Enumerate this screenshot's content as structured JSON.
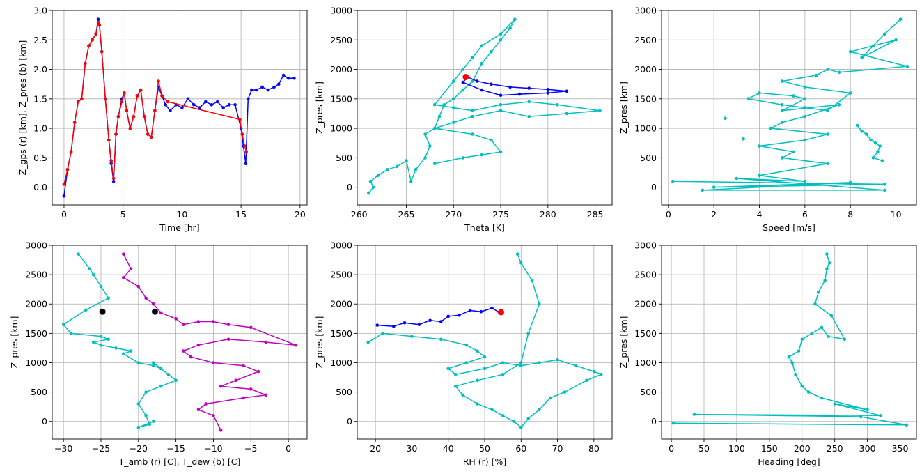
{
  "chart_data": [
    {
      "type": "line",
      "xlabel": "Time [hr]",
      "ylabel": "Z_gps (r) [km], Z_pres (b) [km]",
      "xlim": [
        -1,
        20.6
      ],
      "ylim": [
        -0.3,
        3.0
      ],
      "xticks": [
        0,
        5,
        10,
        15,
        20
      ],
      "xticklabels": [
        "0",
        "5",
        "10",
        "15",
        "20"
      ],
      "yticks": [
        0.0,
        0.5,
        1.0,
        1.5,
        2.0,
        2.5,
        3.0
      ],
      "yticklabels": [
        "0.0",
        "0.5",
        "1.0",
        "1.5",
        "2.0",
        "2.5",
        "3.0"
      ],
      "grid": true,
      "series": [
        {
          "color": "#0000ff",
          "x": [
            0,
            0.3,
            0.6,
            0.9,
            1.2,
            1.5,
            1.8,
            2.1,
            2.4,
            2.7,
            2.9,
            3.0,
            3.2,
            3.5,
            3.8,
            4.0,
            4.2,
            4.4,
            4.6,
            4.9,
            5.1,
            5.3,
            5.6,
            5.9,
            6.2,
            6.5,
            6.8,
            7.1,
            7.4,
            7.7,
            8.0,
            8.3,
            8.6,
            9.0,
            9.5,
            10.0,
            10.5,
            11.0,
            11.5,
            12.0,
            12.5,
            13.0,
            13.5,
            14.0,
            14.5,
            15.0,
            15.2,
            15.4,
            15.6,
            15.9,
            16.3,
            16.8,
            17.3,
            17.8,
            18.2,
            18.6,
            19.0,
            19.5
          ],
          "y": [
            -0.15,
            0.3,
            0.6,
            1.1,
            1.45,
            1.5,
            2.1,
            2.4,
            2.5,
            2.6,
            2.85,
            2.75,
            2.3,
            1.5,
            0.8,
            0.4,
            0.1,
            0.9,
            1.2,
            1.5,
            1.6,
            1.3,
            1.0,
            1.2,
            1.55,
            1.65,
            1.2,
            0.9,
            0.85,
            1.3,
            1.7,
            1.55,
            1.4,
            1.3,
            1.4,
            1.35,
            1.5,
            1.4,
            1.35,
            1.45,
            1.4,
            1.45,
            1.35,
            1.4,
            1.4,
            1.0,
            0.7,
            0.4,
            1.5,
            1.65,
            1.65,
            1.7,
            1.65,
            1.7,
            1.75,
            1.9,
            1.85,
            1.85
          ]
        },
        {
          "color": "#ff0000",
          "x": [
            0,
            0.3,
            0.6,
            0.9,
            1.2,
            1.5,
            1.8,
            2.1,
            2.4,
            2.7,
            2.9,
            3.0,
            3.2,
            3.5,
            3.8,
            4.0,
            4.2,
            4.4,
            4.6,
            4.9,
            5.1,
            5.3,
            5.6,
            5.9,
            6.2,
            6.5,
            6.8,
            7.1,
            7.4,
            7.7,
            8.0,
            8.3,
            8.8,
            14.9,
            15.1,
            15.3,
            15.45
          ],
          "y": [
            0.05,
            0.3,
            0.6,
            1.1,
            1.45,
            1.5,
            2.1,
            2.4,
            2.5,
            2.6,
            2.8,
            2.75,
            2.3,
            1.5,
            0.8,
            0.45,
            0.15,
            0.9,
            1.2,
            1.45,
            1.6,
            1.3,
            1.0,
            1.2,
            1.55,
            1.65,
            1.2,
            0.9,
            0.85,
            1.3,
            1.8,
            1.55,
            1.45,
            1.15,
            0.9,
            0.7,
            0.6
          ]
        }
      ]
    },
    {
      "type": "line",
      "xlabel": "Theta [K]",
      "ylabel": "Z_pres [km]",
      "xlim": [
        259.8,
        286.8
      ],
      "ylim": [
        -300,
        3000
      ],
      "xticks": [
        260,
        265,
        270,
        275,
        280,
        285
      ],
      "xticklabels": [
        "260",
        "265",
        "270",
        "275",
        "280",
        "285"
      ],
      "yticks": [
        0,
        500,
        1000,
        1500,
        2000,
        2500,
        3000
      ],
      "yticklabels": [
        "0",
        "500",
        "1000",
        "1500",
        "2000",
        "2500",
        "3000"
      ],
      "grid": true,
      "series": [
        {
          "color": "#00bfbf",
          "x": [
            261,
            261.5,
            261.2,
            262,
            263,
            264,
            265,
            265.5,
            266,
            267,
            267.5,
            267,
            268,
            268.5,
            269,
            270,
            271,
            272,
            273,
            274,
            275,
            276,
            276.5,
            275,
            273,
            272,
            271,
            270,
            268,
            270,
            272,
            275,
            278,
            281,
            285.5,
            282,
            278,
            275,
            272,
            270,
            268,
            272,
            274,
            275,
            273,
            271,
            268
          ],
          "y": [
            -100,
            0,
            100,
            200,
            300,
            350,
            450,
            100,
            300,
            500,
            700,
            900,
            1000,
            1200,
            1400,
            1500,
            1650,
            1800,
            2100,
            2300,
            2500,
            2700,
            2850,
            2600,
            2400,
            2200,
            2000,
            1800,
            1400,
            1350,
            1300,
            1400,
            1450,
            1400,
            1300,
            1250,
            1200,
            1300,
            1200,
            1100,
            1000,
            900,
            800,
            600,
            550,
            500,
            400
          ]
        },
        {
          "color": "#0000ff",
          "x": [
            271.5,
            272.5,
            274,
            276,
            278,
            280,
            282,
            280,
            277,
            275,
            273,
            271,
            271.5
          ],
          "y": [
            1870,
            1800,
            1750,
            1700,
            1680,
            1660,
            1630,
            1600,
            1580,
            1560,
            1650,
            1780,
            1870
          ]
        },
        {
          "color": "#ff0000",
          "marker": "big",
          "x": [
            271.3
          ],
          "y": [
            1870
          ]
        }
      ]
    },
    {
      "type": "line",
      "xlabel": "Speed [m/s]",
      "ylabel": "Z_pres [km]",
      "xlim": [
        -0.3,
        10.9
      ],
      "ylim": [
        -300,
        3000
      ],
      "xticks": [
        0,
        2,
        4,
        6,
        8,
        10
      ],
      "xticklabels": [
        "0",
        "2",
        "4",
        "6",
        "8",
        "10"
      ],
      "yticks": [
        0,
        500,
        1000,
        1500,
        2000,
        2500,
        3000
      ],
      "yticklabels": [
        "0",
        "500",
        "1000",
        "1500",
        "2000",
        "2500",
        "3000"
      ],
      "grid": true,
      "series": [
        {
          "color": "#00bfbf",
          "x": [
            0.2,
            9.5,
            2,
            8,
            1.5,
            9.5,
            3,
            6,
            4,
            7,
            5,
            5.5,
            4,
            6,
            7,
            4.5,
            5,
            6,
            7.5,
            5,
            6,
            5.5,
            4,
            3.5,
            5,
            6,
            7,
            8,
            6,
            5,
            6.5,
            7,
            7.5,
            10.5,
            8,
            9,
            10,
            8.5,
            9.5,
            10.2
          ],
          "y": [
            100,
            50,
            0,
            80,
            -50,
            -50,
            150,
            100,
            200,
            400,
            500,
            600,
            700,
            800,
            900,
            1000,
            1100,
            1200,
            1400,
            1300,
            1500,
            1550,
            1600,
            1500,
            1400,
            1350,
            1300,
            1600,
            1700,
            1800,
            1900,
            2000,
            1950,
            2050,
            2300,
            2400,
            2500,
            2200,
            2600,
            2850
          ]
        },
        {
          "color": "#00bfbf",
          "x": [
            8.3,
            8.5,
            8.7,
            8.9,
            9.1,
            9.3,
            9.2,
            9.0,
            9.4
          ],
          "y": [
            1050,
            950,
            900,
            800,
            750,
            700,
            600,
            500,
            450
          ]
        },
        {
          "color": "#00bfbf",
          "marker": "dot",
          "x": [
            2.5,
            3.3
          ],
          "y": [
            1170,
            820
          ]
        }
      ]
    },
    {
      "type": "line",
      "xlabel": "T_amb (r) [C], T_dew (b) [C]",
      "ylabel": "Z_pres [km]",
      "xlim": [
        -31.5,
        2.5
      ],
      "ylim": [
        -300,
        3000
      ],
      "xticks": [
        -30,
        -25,
        -20,
        -15,
        -10,
        -5,
        0
      ],
      "xticklabels": [
        "−30",
        "−25",
        "−20",
        "−15",
        "−10",
        "−5",
        "0"
      ],
      "yticks": [
        0,
        500,
        1000,
        1500,
        2000,
        2500,
        3000
      ],
      "yticklabels": [
        "0",
        "500",
        "1000",
        "1500",
        "2000",
        "2500",
        "3000"
      ],
      "grid": true,
      "series": [
        {
          "color": "#00bfbf",
          "x": [
            -28,
            -26.5,
            -26,
            -25,
            -24,
            -27,
            -30,
            -29,
            -25,
            -24,
            -26,
            -25,
            -23,
            -21,
            -22,
            -20,
            -18,
            -17,
            -18,
            -16,
            -15,
            -17,
            -19,
            -20,
            -19,
            -18.5,
            -20,
            -18
          ],
          "y": [
            2850,
            2600,
            2500,
            2300,
            2100,
            1900,
            1650,
            1500,
            1450,
            1400,
            1350,
            1300,
            1250,
            1200,
            1150,
            1000,
            950,
            900,
            1000,
            800,
            700,
            600,
            500,
            300,
            100,
            -50,
            -100,
            0
          ]
        },
        {
          "color": "#bf00bf",
          "x": [
            -22,
            -21,
            -22,
            -20,
            -19,
            -18,
            -17,
            -15,
            -14,
            -12,
            -10,
            -8,
            -5,
            1,
            -3,
            -8,
            -12,
            -14,
            -13,
            -10,
            -6,
            -4,
            -7,
            -9,
            -5,
            -3,
            -6,
            -11,
            -12,
            -10,
            -9
          ],
          "y": [
            2850,
            2600,
            2450,
            2300,
            2100,
            2000,
            1850,
            1750,
            1650,
            1700,
            1700,
            1650,
            1600,
            1300,
            1350,
            1400,
            1300,
            1200,
            1100,
            1000,
            950,
            850,
            700,
            600,
            550,
            450,
            400,
            300,
            200,
            100,
            -150
          ]
        },
        {
          "color": "#000000",
          "marker": "big",
          "x": [
            -24.8,
            -17.8
          ],
          "y": [
            1870,
            1870
          ]
        }
      ]
    },
    {
      "type": "line",
      "xlabel": "RH (r) [%]",
      "ylabel": "Z_pres [km]",
      "xlim": [
        15,
        85
      ],
      "ylim": [
        -300,
        3000
      ],
      "xticks": [
        20,
        30,
        40,
        50,
        60,
        70,
        80
      ],
      "xticklabels": [
        "20",
        "30",
        "40",
        "50",
        "60",
        "70",
        "80"
      ],
      "yticks": [
        0,
        500,
        1000,
        1500,
        2000,
        2500,
        3000
      ],
      "yticklabels": [
        "0",
        "500",
        "1000",
        "1500",
        "2000",
        "2500",
        "3000"
      ],
      "grid": true,
      "series": [
        {
          "color": "#00bfbf",
          "x": [
            18,
            22,
            30,
            38,
            45,
            48,
            50,
            45,
            40,
            42,
            50,
            55,
            60,
            65,
            70,
            75,
            80,
            82,
            78,
            72,
            68,
            65,
            62,
            60,
            58,
            55,
            52,
            48,
            44,
            42,
            48,
            55,
            60,
            62,
            65,
            63,
            60,
            59
          ],
          "y": [
            1350,
            1500,
            1450,
            1400,
            1300,
            1200,
            1100,
            1000,
            900,
            800,
            900,
            1000,
            950,
            1000,
            1050,
            950,
            850,
            800,
            700,
            500,
            400,
            200,
            50,
            -100,
            0,
            100,
            200,
            300,
            450,
            600,
            700,
            800,
            1000,
            1500,
            2000,
            2400,
            2700,
            2850
          ]
        },
        {
          "color": "#0000ff",
          "x": [
            20.5,
            25,
            28,
            32,
            35,
            38,
            40,
            43,
            46,
            49,
            52,
            54
          ],
          "y": [
            1640,
            1620,
            1680,
            1650,
            1720,
            1700,
            1790,
            1810,
            1890,
            1870,
            1930,
            1860
          ]
        },
        {
          "color": "#ff0000",
          "marker": "big",
          "x": [
            54.5
          ],
          "y": [
            1860
          ]
        }
      ]
    },
    {
      "type": "line",
      "xlabel": "Heading [deg]",
      "ylabel": "Z_pres [km]",
      "xlim": [
        -15,
        375
      ],
      "ylim": [
        -300,
        3000
      ],
      "xticks": [
        0,
        50,
        100,
        150,
        200,
        250,
        300,
        350
      ],
      "xticklabels": [
        "0",
        "50",
        "100",
        "150",
        "200",
        "250",
        "300",
        "350"
      ],
      "yticks": [
        0,
        500,
        1000,
        1500,
        2000,
        2500,
        3000
      ],
      "yticklabels": [
        "0",
        "500",
        "1000",
        "1500",
        "2000",
        "2500",
        "3000"
      ],
      "grid": true,
      "series": [
        {
          "color": "#00bfbf",
          "x": [
            3,
            360,
            290,
            35,
            320,
            250,
            300,
            230,
            210,
            200,
            190,
            185,
            180,
            195,
            200,
            215,
            230,
            240,
            265,
            245,
            220,
            225,
            235,
            238,
            242,
            238
          ],
          "y": [
            -30,
            -60,
            80,
            120,
            100,
            300,
            200,
            400,
            500,
            600,
            800,
            1000,
            1100,
            1200,
            1400,
            1500,
            1600,
            1450,
            1400,
            1800,
            2000,
            2200,
            2400,
            2600,
            2700,
            2850
          ]
        }
      ]
    }
  ]
}
